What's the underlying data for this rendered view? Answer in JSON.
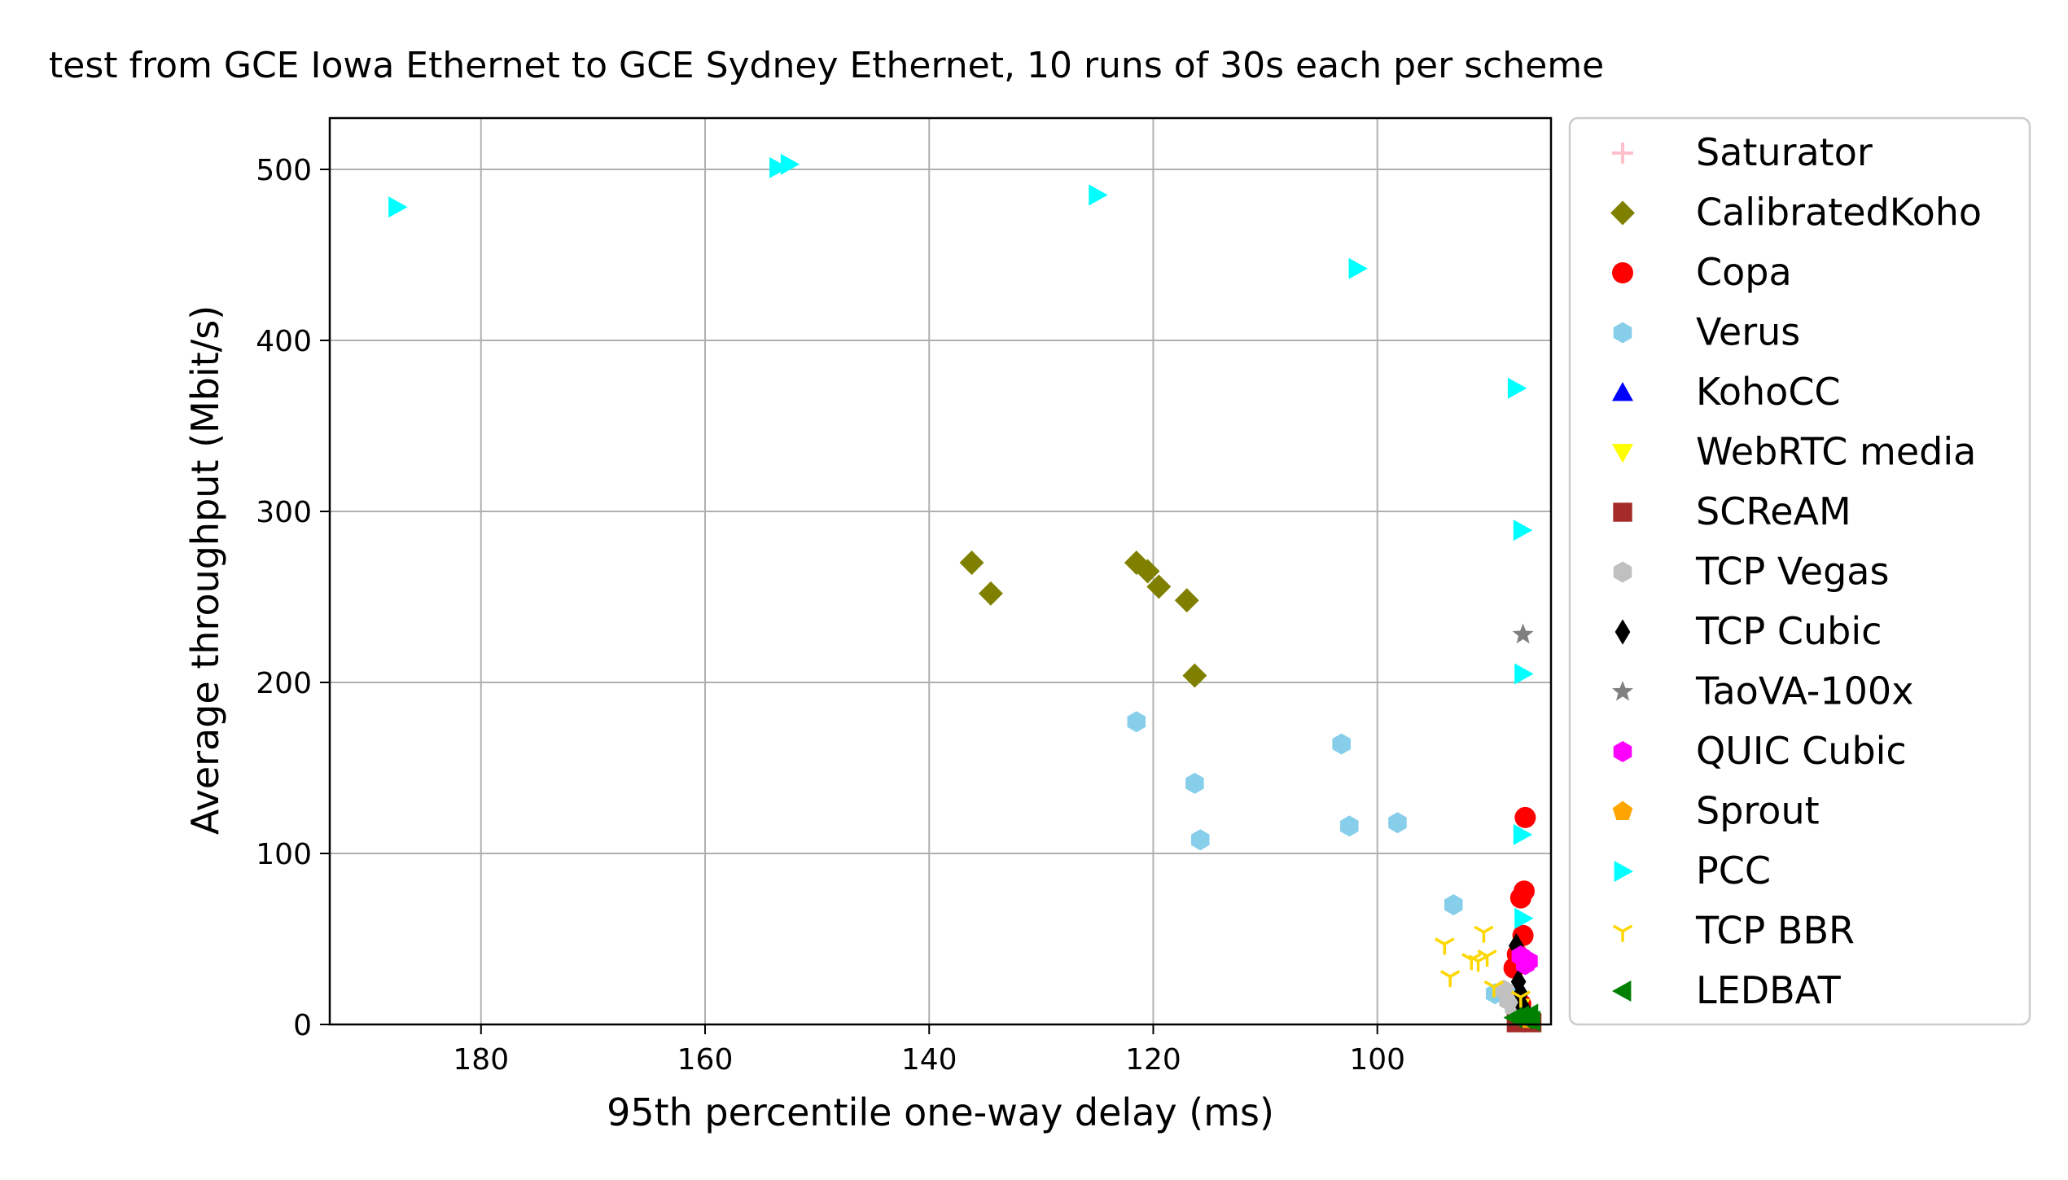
{
  "chart_data": {
    "type": "scatter",
    "title": "test from GCE Iowa Ethernet to GCE Sydney Ethernet, 10 runs of 30s each per scheme",
    "xlabel": "95th percentile one-way delay (ms)",
    "ylabel": "Average throughput (Mbit/s)",
    "x_inverted": true,
    "xlim": [
      193.5,
      84.5
    ],
    "ylim": [
      0,
      530
    ],
    "xticks": [
      180,
      160,
      140,
      120,
      100
    ],
    "yticks": [
      0,
      100,
      200,
      300,
      400,
      500
    ],
    "grid": true,
    "legend_position": "outside right",
    "series": [
      {
        "name": "Saturator",
        "marker": "plus",
        "color": "#ffc0cb",
        "points": []
      },
      {
        "name": "CalibratedKoho",
        "marker": "diamond",
        "color": "#808000",
        "points": [
          [
            136.2,
            270
          ],
          [
            134.5,
            252
          ],
          [
            121.5,
            270
          ],
          [
            120.5,
            265
          ],
          [
            119.5,
            256
          ],
          [
            117,
            248
          ],
          [
            116.3,
            204
          ]
        ]
      },
      {
        "name": "Copa",
        "marker": "circle",
        "color": "#ff0000",
        "points": [
          [
            86.8,
            121
          ],
          [
            86.9,
            78
          ],
          [
            87.2,
            74
          ],
          [
            87,
            52
          ],
          [
            87.5,
            41
          ],
          [
            87.8,
            33
          ],
          [
            87.2,
            12
          ],
          [
            87,
            4
          ]
        ]
      },
      {
        "name": "Verus",
        "marker": "hexagon",
        "color": "#87ceeb",
        "points": [
          [
            121.5,
            177
          ],
          [
            116.3,
            141
          ],
          [
            115.8,
            108
          ],
          [
            103.2,
            164
          ],
          [
            102.5,
            116
          ],
          [
            98.2,
            118
          ],
          [
            93.2,
            70
          ],
          [
            89.5,
            18
          ],
          [
            88,
            16
          ]
        ]
      },
      {
        "name": "KohoCC",
        "marker": "triangle-up",
        "color": "#0000ff",
        "points": []
      },
      {
        "name": "WebRTC media",
        "marker": "triangle-down",
        "color": "#ffff00",
        "points": [
          [
            87.3,
            10
          ]
        ]
      },
      {
        "name": "SCReAM",
        "marker": "square",
        "color": "#a52a2a",
        "points": [
          [
            86.2,
            1
          ],
          [
            87.6,
            1
          ]
        ]
      },
      {
        "name": "TCP Vegas",
        "marker": "hexagon",
        "color": "#c0c0c0",
        "points": [
          [
            88.7,
            20
          ],
          [
            88.3,
            14
          ],
          [
            87.8,
            10
          ]
        ]
      },
      {
        "name": "TCP Cubic",
        "marker": "thin-diamond",
        "color": "#000000",
        "points": [
          [
            87.6,
            46
          ],
          [
            87.4,
            25
          ],
          [
            87.2,
            18
          ],
          [
            87,
            10
          ],
          [
            86.8,
            5
          ]
        ]
      },
      {
        "name": "TaoVA-100x",
        "marker": "star",
        "color": "#808080",
        "points": [
          [
            87,
            228
          ]
        ]
      },
      {
        "name": "QUIC Cubic",
        "marker": "hexagon",
        "color": "#ff00ff",
        "points": [
          [
            87.2,
            40
          ],
          [
            86.5,
            37
          ],
          [
            86.8,
            35
          ]
        ]
      },
      {
        "name": "Sprout",
        "marker": "pentagon",
        "color": "#ffa500",
        "points": [
          [
            86.5,
            3
          ]
        ]
      },
      {
        "name": "PCC",
        "marker": "triangle-right",
        "color": "#00ffff",
        "points": [
          [
            187.5,
            478
          ],
          [
            153.5,
            501
          ],
          [
            152.5,
            503
          ],
          [
            125,
            485
          ],
          [
            101.8,
            442
          ],
          [
            87.6,
            372
          ],
          [
            87.1,
            289
          ],
          [
            87,
            205
          ],
          [
            87.1,
            111
          ],
          [
            87,
            62
          ]
        ]
      },
      {
        "name": "TCP BBR",
        "marker": "tri-down",
        "color": "#ffd700",
        "points": [
          [
            94,
            47
          ],
          [
            93.5,
            28
          ],
          [
            91.6,
            38
          ],
          [
            91,
            37
          ],
          [
            90.5,
            54
          ],
          [
            90.2,
            40
          ],
          [
            89.6,
            22
          ],
          [
            87.2,
            16
          ]
        ]
      },
      {
        "name": "LEDBAT",
        "marker": "triangle-left",
        "color": "#008000",
        "points": [
          [
            87.8,
            4
          ],
          [
            87.2,
            5
          ],
          [
            86.8,
            3
          ],
          [
            86.4,
            6
          ],
          [
            86.2,
            2
          ]
        ]
      }
    ]
  }
}
